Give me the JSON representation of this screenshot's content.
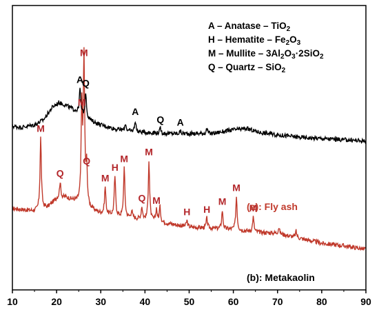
{
  "chart_data": {
    "type": "line",
    "title": "",
    "xlabel": "",
    "ylabel": "",
    "xlim": [
      10,
      90
    ],
    "x_ticks": [
      "10",
      "20",
      "30",
      "40",
      "50",
      "60",
      "70",
      "80",
      "90"
    ],
    "y_ticks": false,
    "grid": false,
    "legend": {
      "placement": "top-right",
      "entries": [
        {
          "code": "A",
          "sep": " – ",
          "mineral": "Anatase",
          "formula": [
            [
              "TiO",
              ""
            ],
            [
              "2",
              "sub"
            ]
          ]
        },
        {
          "code": "H",
          "sep": " –  ",
          "mineral": "Hematite",
          "formula": [
            [
              "Fe",
              ""
            ],
            [
              "2",
              "sub"
            ],
            [
              "O",
              ""
            ],
            [
              "3",
              "sub"
            ]
          ]
        },
        {
          "code": "M",
          "sep": " – ",
          "mineral": "Mullite",
          "formula": [
            [
              "3Al",
              ""
            ],
            [
              "2",
              "sub"
            ],
            [
              "O",
              ""
            ],
            [
              "3",
              "sub"
            ],
            [
              "·2SiO",
              ""
            ],
            [
              "2",
              "sub"
            ]
          ]
        },
        {
          "code": "Q",
          "sep": " – ",
          "mineral": "Quartz",
          "formula": [
            [
              "SiO",
              ""
            ],
            [
              "2",
              "sub"
            ]
          ]
        }
      ]
    },
    "series": [
      {
        "name": "(a): Fly ash",
        "color": "#c0392b",
        "baseline": [
          [
            10,
            0.44
          ],
          [
            15,
            0.42
          ],
          [
            18,
            0.45
          ],
          [
            20,
            0.52
          ],
          [
            22,
            0.53
          ],
          [
            24,
            0.5
          ],
          [
            26,
            0.47
          ],
          [
            28,
            0.43
          ],
          [
            30,
            0.4
          ],
          [
            35,
            0.37
          ],
          [
            40,
            0.35
          ],
          [
            45,
            0.32
          ],
          [
            50,
            0.29
          ],
          [
            55,
            0.28
          ],
          [
            60,
            0.27
          ],
          [
            65,
            0.25
          ],
          [
            70,
            0.24
          ],
          [
            75,
            0.2
          ],
          [
            80,
            0.16
          ],
          [
            85,
            0.14
          ],
          [
            90,
            0.11
          ]
        ],
        "peaks": [
          {
            "x": 16.4,
            "h": 0.58,
            "label": "M"
          },
          {
            "x": 20.8,
            "h": 0.13,
            "label": "Q"
          },
          {
            "x": 25.7,
            "h": 0.75,
            "label": "M"
          },
          {
            "x": 26.2,
            "h": 1.16,
            "label": "M"
          },
          {
            "x": 26.8,
            "h": 0.3,
            "label": "Q"
          },
          {
            "x": 31.0,
            "h": 0.22,
            "label": "M"
          },
          {
            "x": 33.2,
            "h": 0.32,
            "label": "H"
          },
          {
            "x": 35.3,
            "h": 0.4,
            "label": "M"
          },
          {
            "x": 37.0,
            "h": 0.06,
            "label": ""
          },
          {
            "x": 39.3,
            "h": 0.1,
            "label": "Q"
          },
          {
            "x": 40.9,
            "h": 0.48,
            "label": "M"
          },
          {
            "x": 42.6,
            "h": 0.1,
            "label": "M"
          },
          {
            "x": 43.4,
            "h": 0.12,
            "label": ""
          },
          {
            "x": 49.5,
            "h": 0.05,
            "label": "H"
          },
          {
            "x": 54.0,
            "h": 0.08,
            "label": "H"
          },
          {
            "x": 57.5,
            "h": 0.15,
            "label": "M"
          },
          {
            "x": 60.7,
            "h": 0.27,
            "label": "M"
          },
          {
            "x": 64.5,
            "h": 0.12,
            "label": "M"
          },
          {
            "x": 70.3,
            "h": 0.05,
            "label": ""
          },
          {
            "x": 74.2,
            "h": 0.05,
            "label": ""
          }
        ]
      },
      {
        "name": "(b): Metakaolin",
        "color": "#000000",
        "baseline": [
          [
            10,
            0.11
          ],
          [
            12,
            0.1
          ],
          [
            15,
            0.12
          ],
          [
            17,
            0.16
          ],
          [
            19,
            0.26
          ],
          [
            20.5,
            0.3
          ],
          [
            22,
            0.28
          ],
          [
            24,
            0.24
          ],
          [
            26,
            0.2
          ],
          [
            28,
            0.15
          ],
          [
            30,
            0.12
          ],
          [
            33,
            0.09
          ],
          [
            36,
            0.07
          ],
          [
            40,
            0.06
          ],
          [
            45,
            0.05
          ],
          [
            50,
            0.05
          ],
          [
            55,
            0.05
          ],
          [
            60,
            0.08
          ],
          [
            63,
            0.09
          ],
          [
            66,
            0.06
          ],
          [
            70,
            0.04
          ],
          [
            75,
            0.02
          ],
          [
            80,
            0.01
          ],
          [
            85,
            0.0
          ],
          [
            90,
            -0.01
          ]
        ],
        "peaks": [
          {
            "x": 25.3,
            "h": 0.2,
            "label": "A"
          },
          {
            "x": 26.6,
            "h": 0.2,
            "label": "Q"
          },
          {
            "x": 35.6,
            "h": 0.06,
            "label": ""
          },
          {
            "x": 37.8,
            "h": 0.09,
            "label": "A"
          },
          {
            "x": 43.5,
            "h": 0.04,
            "label": "Q"
          },
          {
            "x": 48.0,
            "h": 0.02,
            "label": "A"
          },
          {
            "x": 54.0,
            "h": 0.04,
            "label": ""
          }
        ]
      }
    ]
  }
}
